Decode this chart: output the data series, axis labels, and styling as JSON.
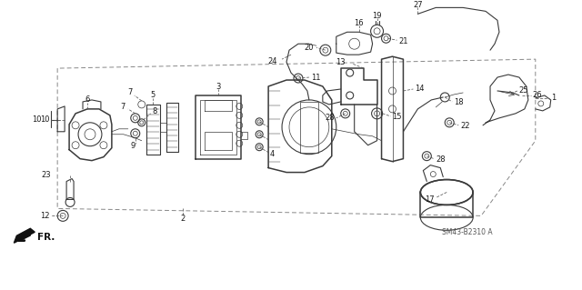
{
  "bg_color": "#ffffff",
  "line_color": "#3a3a3a",
  "label_color": "#1a1a1a",
  "diagram_code": "SM43-B2310 A",
  "fr_label": "FR."
}
